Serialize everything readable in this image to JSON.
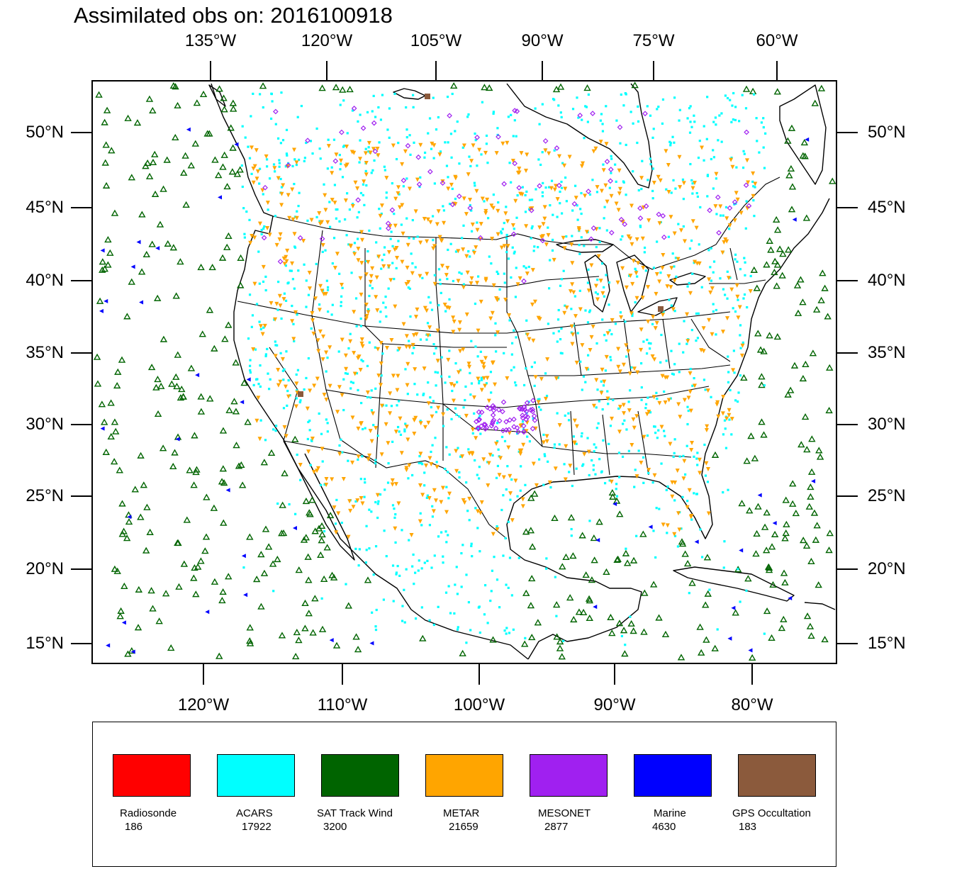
{
  "title": "Assimilated obs on: 2016100918",
  "axes": {
    "top_lon": [
      "135°W",
      "120°W",
      "105°W",
      "90°W",
      "75°W",
      "60°W"
    ],
    "bottom_lon": [
      "120°W",
      "110°W",
      "100°W",
      "90°W",
      "80°W"
    ],
    "lat": [
      "50°N",
      "45°N",
      "40°N",
      "35°N",
      "30°N",
      "25°N",
      "20°N",
      "15°N"
    ]
  },
  "legend": [
    {
      "label": "Radiosonde",
      "count": "186",
      "color": "#ff0000"
    },
    {
      "label": "ACARS",
      "count": "17922",
      "color": "#00ffff"
    },
    {
      "label": "SAT Track Wind",
      "count": "3200",
      "color": "#006400"
    },
    {
      "label": "METAR",
      "count": "21659",
      "color": "#ffa500"
    },
    {
      "label": "MESONET",
      "count": "2877",
      "color": "#a020f0"
    },
    {
      "label": "Marine",
      "count": "4630",
      "color": "#0000ff"
    },
    {
      "label": "GPS Occultation",
      "count": "183",
      "color": "#8b5a3c"
    }
  ]
}
